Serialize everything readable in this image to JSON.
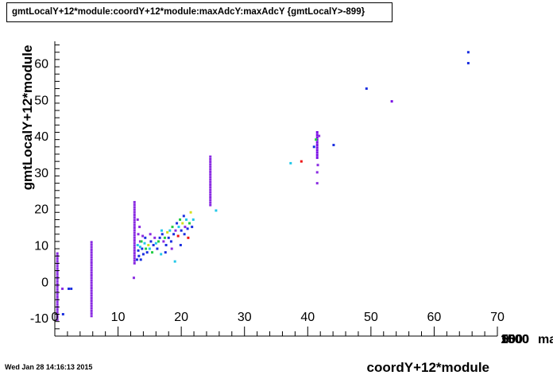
{
  "header": {
    "title": "gmtLocalY+12*module:coordY+12*module:maxAdcY:maxAdcY {gmtLocalY>-899}"
  },
  "footer": {
    "timestamp": "Wed Jan 28 14:16:13 2015"
  },
  "colors": {
    "frame": "#000000",
    "purple": "#8a2be2",
    "violet": "#7b10e6",
    "blue": "#1a2ee0",
    "cyan": "#22c8e8",
    "green": "#22cc44",
    "yellow": "#d4e020",
    "red": "#ee1111"
  },
  "chart_data": {
    "type": "scatter",
    "title": "gmtLocalY+12*module:coordY+12*module:maxAdcY:maxAdcY {gmtLocalY>-899}",
    "xlabel": "coordY+12*module",
    "ylabel": "gmtLocalY+12*module",
    "zlabel": "ma",
    "xlim": [
      0,
      70
    ],
    "ylim": [
      -15,
      66
    ],
    "x_ticks": [
      "0",
      "10",
      "20",
      "30",
      "40",
      "50",
      "60",
      "70"
    ],
    "y_ticks": [
      "-10",
      "0",
      "10",
      "20",
      "30",
      "40",
      "50",
      "60"
    ],
    "z_ticks_overlapping": [
      "1500",
      "1000",
      "500",
      "0"
    ],
    "grid": false,
    "columns": [
      {
        "x": 0.4,
        "y_from": -10.5,
        "y_to": 8,
        "color": "purple"
      },
      {
        "x": 5.8,
        "y_from": -9.5,
        "y_to": 11,
        "color": "purple"
      },
      {
        "x": 12.6,
        "y_from": 5,
        "y_to": 22,
        "color": "purple"
      },
      {
        "x": 24.6,
        "y_from": 21,
        "y_to": 34.5,
        "color": "purple"
      },
      {
        "x": 41.5,
        "y_from": 34,
        "y_to": 41,
        "color": "violet"
      }
    ],
    "points": [
      {
        "x": 1.3,
        "y": -9,
        "c": "blue"
      },
      {
        "x": 2.2,
        "y": -2,
        "c": "blue"
      },
      {
        "x": 2.6,
        "y": -2,
        "c": "blue"
      },
      {
        "x": 1.2,
        "y": -2,
        "c": "purple"
      },
      {
        "x": 12.5,
        "y": 1,
        "c": "purple"
      },
      {
        "x": 13.1,
        "y": 17,
        "c": "purple"
      },
      {
        "x": 13.4,
        "y": 15,
        "c": "purple"
      },
      {
        "x": 13.2,
        "y": 13,
        "c": "purple"
      },
      {
        "x": 13.5,
        "y": 11,
        "c": "purple"
      },
      {
        "x": 13.9,
        "y": 12.5,
        "c": "purple"
      },
      {
        "x": 13.0,
        "y": 6,
        "c": "blue"
      },
      {
        "x": 13.3,
        "y": 7,
        "c": "blue"
      },
      {
        "x": 13.6,
        "y": 6,
        "c": "blue"
      },
      {
        "x": 13.2,
        "y": 8.5,
        "c": "blue"
      },
      {
        "x": 13.8,
        "y": 9,
        "c": "blue"
      },
      {
        "x": 14.0,
        "y": 7.5,
        "c": "blue"
      },
      {
        "x": 13.1,
        "y": 10,
        "c": "cyan"
      },
      {
        "x": 13.5,
        "y": 9.5,
        "c": "cyan"
      },
      {
        "x": 14.2,
        "y": 10.5,
        "c": "cyan"
      },
      {
        "x": 13.7,
        "y": 11,
        "c": "green"
      },
      {
        "x": 14.4,
        "y": 9,
        "c": "green"
      },
      {
        "x": 14.8,
        "y": 10,
        "c": "yellow"
      },
      {
        "x": 14.6,
        "y": 8,
        "c": "blue"
      },
      {
        "x": 15.0,
        "y": 9,
        "c": "cyan"
      },
      {
        "x": 15.2,
        "y": 11,
        "c": "blue"
      },
      {
        "x": 15.4,
        "y": 8,
        "c": "green"
      },
      {
        "x": 15.6,
        "y": 10,
        "c": "blue"
      },
      {
        "x": 15.8,
        "y": 12,
        "c": "purple"
      },
      {
        "x": 16.0,
        "y": 10.5,
        "c": "cyan"
      },
      {
        "x": 16.2,
        "y": 9,
        "c": "blue"
      },
      {
        "x": 16.4,
        "y": 11,
        "c": "green"
      },
      {
        "x": 16.6,
        "y": 12,
        "c": "blue"
      },
      {
        "x": 16.8,
        "y": 7.5,
        "c": "cyan"
      },
      {
        "x": 17.0,
        "y": 13,
        "c": "blue"
      },
      {
        "x": 17.2,
        "y": 11,
        "c": "purple"
      },
      {
        "x": 17.4,
        "y": 12,
        "c": "green"
      },
      {
        "x": 17.6,
        "y": 10,
        "c": "blue"
      },
      {
        "x": 17.8,
        "y": 13.5,
        "c": "yellow"
      },
      {
        "x": 18.0,
        "y": 12,
        "c": "blue"
      },
      {
        "x": 18.2,
        "y": 14,
        "c": "cyan"
      },
      {
        "x": 18.4,
        "y": 11,
        "c": "blue"
      },
      {
        "x": 18.6,
        "y": 15,
        "c": "green"
      },
      {
        "x": 18.8,
        "y": 13,
        "c": "blue"
      },
      {
        "x": 19.0,
        "y": 5.5,
        "c": "cyan"
      },
      {
        "x": 19.1,
        "y": 14,
        "c": "purple"
      },
      {
        "x": 19.3,
        "y": 16,
        "c": "blue"
      },
      {
        "x": 19.5,
        "y": 12.5,
        "c": "red"
      },
      {
        "x": 19.6,
        "y": 15,
        "c": "cyan"
      },
      {
        "x": 19.8,
        "y": 17,
        "c": "green"
      },
      {
        "x": 20.0,
        "y": 14,
        "c": "blue"
      },
      {
        "x": 20.2,
        "y": 16,
        "c": "yellow"
      },
      {
        "x": 20.4,
        "y": 18,
        "c": "blue"
      },
      {
        "x": 20.6,
        "y": 15,
        "c": "purple"
      },
      {
        "x": 20.8,
        "y": 17,
        "c": "cyan"
      },
      {
        "x": 21.0,
        "y": 14.5,
        "c": "blue"
      },
      {
        "x": 21.1,
        "y": 12,
        "c": "red"
      },
      {
        "x": 21.3,
        "y": 16,
        "c": "green"
      },
      {
        "x": 21.5,
        "y": 19,
        "c": "yellow"
      },
      {
        "x": 21.7,
        "y": 15,
        "c": "blue"
      },
      {
        "x": 21.9,
        "y": 17,
        "c": "cyan"
      },
      {
        "x": 20.5,
        "y": 13,
        "c": "blue"
      },
      {
        "x": 19.9,
        "y": 10,
        "c": "blue"
      },
      {
        "x": 18.5,
        "y": 9,
        "c": "purple"
      },
      {
        "x": 17.5,
        "y": 8,
        "c": "blue"
      },
      {
        "x": 15.1,
        "y": 13,
        "c": "purple"
      },
      {
        "x": 14.3,
        "y": 12,
        "c": "blue"
      },
      {
        "x": 16.9,
        "y": 14,
        "c": "cyan"
      },
      {
        "x": 25.5,
        "y": 19.5,
        "c": "cyan"
      },
      {
        "x": 37.3,
        "y": 32.5,
        "c": "cyan"
      },
      {
        "x": 39.0,
        "y": 33,
        "c": "red"
      },
      {
        "x": 41.0,
        "y": 37,
        "c": "blue"
      },
      {
        "x": 41.3,
        "y": 39,
        "c": "green"
      },
      {
        "x": 41.5,
        "y": 30,
        "c": "purple"
      },
      {
        "x": 41.5,
        "y": 27,
        "c": "purple"
      },
      {
        "x": 41.6,
        "y": 32,
        "c": "purple"
      },
      {
        "x": 41.8,
        "y": 40,
        "c": "purple"
      },
      {
        "x": 44.1,
        "y": 37.5,
        "c": "blue"
      },
      {
        "x": 49.3,
        "y": 53,
        "c": "blue"
      },
      {
        "x": 53.3,
        "y": 49.5,
        "c": "violet"
      },
      {
        "x": 65.4,
        "y": 63,
        "c": "blue"
      },
      {
        "x": 65.4,
        "y": 60,
        "c": "blue"
      }
    ]
  }
}
